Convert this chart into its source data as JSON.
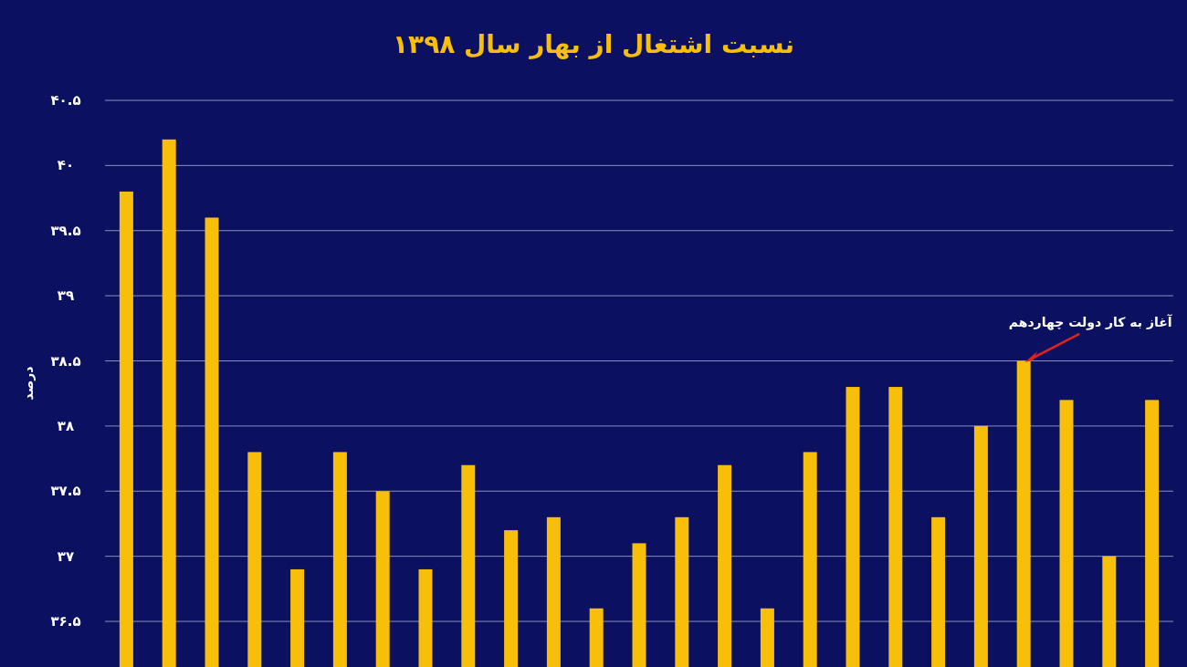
{
  "chart_data": {
    "type": "bar",
    "title": "نسبت اشتغال از بهار سال ۱۳۹۸",
    "ylabel": "درصد",
    "categories": [
      null,
      null,
      null,
      null,
      null,
      null,
      null,
      null,
      null,
      null,
      null,
      null,
      null,
      null,
      null,
      null,
      null,
      null,
      null,
      null,
      null,
      null,
      null,
      null,
      null
    ],
    "values": [
      39.8,
      40.2,
      39.6,
      37.8,
      36.9,
      37.8,
      37.5,
      36.9,
      37.7,
      37.2,
      37.3,
      36.6,
      37.1,
      37.3,
      37.7,
      36.6,
      37.8,
      38.3,
      38.3,
      37.3,
      38.0,
      38.5,
      38.2,
      37.0,
      38.2
    ],
    "color": "#f7be0a",
    "ylim": [
      36.15,
      40.5
    ],
    "yticks": [
      {
        "value": 36.5,
        "label": "۳۶.۵"
      },
      {
        "value": 37,
        "label": "۳۷"
      },
      {
        "value": 37.5,
        "label": "۳۷.۵"
      },
      {
        "value": 38,
        "label": "۳۸"
      },
      {
        "value": 38.5,
        "label": "۳۸.۵"
      },
      {
        "value": 39,
        "label": "۳۹"
      },
      {
        "value": 39.5,
        "label": "۳۹.۵"
      },
      {
        "value": 40,
        "label": "۴۰"
      },
      {
        "value": 40.5,
        "label": "۴۰.۵"
      }
    ],
    "grid": "y",
    "annotations": [
      "آغاز به کار دولت چهاردهم"
    ]
  }
}
